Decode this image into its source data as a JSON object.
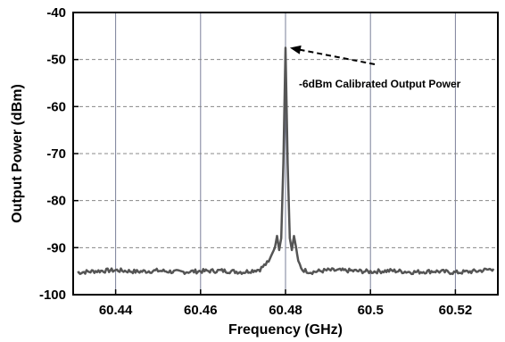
{
  "chart_data": {
    "type": "line",
    "title": "",
    "xlabel": "Frequency (GHz)",
    "ylabel": "Output Power (dBm)",
    "xlim": [
      60.43,
      60.53
    ],
    "ylim": [
      -100,
      -40
    ],
    "x_ticks": [
      60.44,
      60.46,
      60.48,
      60.5,
      60.52
    ],
    "x_tick_labels": [
      "60.44",
      "60.46",
      "60.48",
      "60.5",
      "60.52"
    ],
    "y_ticks": [
      -100,
      -90,
      -80,
      -70,
      -60,
      -50,
      -40
    ],
    "y_tick_labels": [
      "-100",
      "-90",
      "-80",
      "-70",
      "-60",
      "-50",
      "-40"
    ],
    "grid": {
      "x": "solid vertical",
      "y": "dashed horizontal"
    },
    "legend": "none",
    "annotation": {
      "text": "-6dBm Calibrated Output Power",
      "points_to": {
        "x": 60.4802,
        "y": -47.5
      }
    },
    "series": [
      {
        "color": "#555555",
        "x": [
          60.431,
          60.435,
          60.44,
          60.445,
          60.45,
          60.455,
          60.46,
          60.465,
          60.47,
          60.474,
          60.476,
          60.4775,
          60.478,
          60.4785,
          60.479,
          60.4795,
          60.48,
          60.4805,
          60.481,
          60.4815,
          60.482,
          60.4825,
          60.483,
          60.484,
          60.486,
          60.49,
          60.495,
          60.5,
          60.505,
          60.51,
          60.515,
          60.52,
          60.525,
          60.529
        ],
        "y": [
          -95.3,
          -95.0,
          -94.8,
          -95.1,
          -94.9,
          -95.2,
          -95.0,
          -94.9,
          -95.2,
          -94.6,
          -93.0,
          -90.0,
          -87.5,
          -90.5,
          -88.0,
          -72.0,
          -47.5,
          -72.0,
          -88.0,
          -90.5,
          -87.5,
          -90.0,
          -93.0,
          -94.7,
          -95.2,
          -94.8,
          -94.9,
          -95.1,
          -94.9,
          -95.2,
          -95.0,
          -95.3,
          -95.0,
          -94.5
        ]
      }
    ]
  }
}
